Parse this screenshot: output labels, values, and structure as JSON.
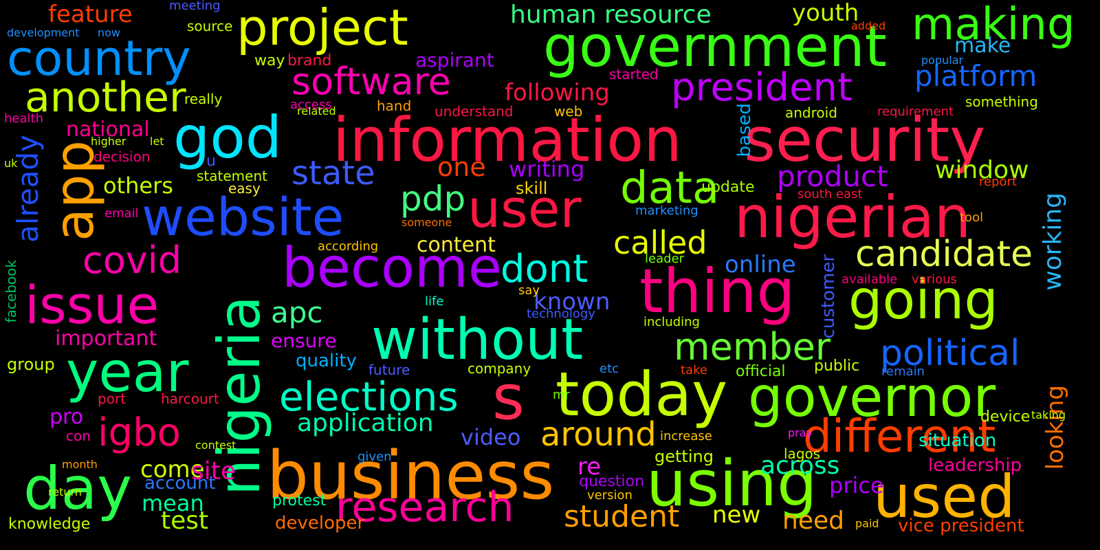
{
  "words": [
    {
      "text": "information",
      "color": "#ff1744"
    },
    {
      "text": "security",
      "color": "#ff1f4f"
    },
    {
      "text": "government",
      "color": "#39ff14"
    },
    {
      "text": "nigerian",
      "color": "#ff1a4a"
    },
    {
      "text": "business",
      "color": "#ff8c00"
    },
    {
      "text": "today",
      "color": "#c6ff00"
    },
    {
      "text": "governor",
      "color": "#76ff03"
    },
    {
      "text": "without",
      "color": "#00ffb3"
    },
    {
      "text": "using",
      "color": "#7cff00"
    },
    {
      "text": "used",
      "color": "#ffb300"
    },
    {
      "text": "thing",
      "color": "#ff0080"
    },
    {
      "text": "going",
      "color": "#aaff00"
    },
    {
      "text": "user",
      "color": "#ff1744"
    },
    {
      "text": "website",
      "color": "#1e4dff"
    },
    {
      "text": "become",
      "color": "#aa00ff"
    },
    {
      "text": "year",
      "color": "#00ff7f"
    },
    {
      "text": "day",
      "color": "#2bff4a"
    },
    {
      "text": "issue",
      "color": "#ff00aa"
    },
    {
      "text": "god",
      "color": "#00e5ff"
    },
    {
      "text": "project",
      "color": "#e8ff00"
    },
    {
      "text": "country",
      "color": "#0091ff"
    },
    {
      "text": "another",
      "color": "#c6ff00"
    },
    {
      "text": "software",
      "color": "#ff00b0"
    },
    {
      "text": "president",
      "color": "#c000ff"
    },
    {
      "text": "making",
      "color": "#39ff14"
    },
    {
      "text": "research",
      "color": "#ff0099"
    },
    {
      "text": "different",
      "color": "#ff3d00"
    },
    {
      "text": "elections",
      "color": "#00ffc8"
    },
    {
      "text": "data",
      "color": "#76ff03"
    },
    {
      "text": "member",
      "color": "#66ff33"
    },
    {
      "text": "political",
      "color": "#1565ff"
    },
    {
      "text": "candidate",
      "color": "#e6ff50"
    },
    {
      "text": "human resource",
      "color": "#39ff88"
    },
    {
      "text": "dont",
      "color": "#00ffe0"
    },
    {
      "text": "platform",
      "color": "#1565ff"
    },
    {
      "text": "product",
      "color": "#b000ff"
    },
    {
      "text": "igbo",
      "color": "#ff0066"
    },
    {
      "text": "covid",
      "color": "#ff00aa"
    },
    {
      "text": "app",
      "color": "#ffa000"
    },
    {
      "text": "nigeria",
      "color": "#00ff8a"
    },
    {
      "text": "already",
      "color": "#1e50ff"
    },
    {
      "text": "state",
      "color": "#3d5aff"
    },
    {
      "text": "around",
      "color": "#ffc400"
    },
    {
      "text": "student",
      "color": "#ffa000"
    },
    {
      "text": "called",
      "color": "#e6ff00"
    },
    {
      "text": "pdp",
      "color": "#40ff80"
    },
    {
      "text": "apc",
      "color": "#3dff90"
    },
    {
      "text": "s",
      "color": "#ff2d55"
    },
    {
      "text": "application",
      "color": "#00ffb0"
    },
    {
      "text": "content",
      "color": "#ffeb3b"
    },
    {
      "text": "window",
      "color": "#aaff00"
    },
    {
      "text": "working",
      "color": "#29b6f6"
    },
    {
      "text": "across",
      "color": "#00ffaa"
    },
    {
      "text": "come",
      "color": "#d0ff00"
    },
    {
      "text": "writing",
      "color": "#aa00ff"
    },
    {
      "text": "one",
      "color": "#ff3d00"
    },
    {
      "text": "others",
      "color": "#c6ff00"
    },
    {
      "text": "important",
      "color": "#ff00aa"
    },
    {
      "text": "national",
      "color": "#ff0090"
    },
    {
      "text": "following",
      "color": "#ff1744"
    },
    {
      "text": "youth",
      "color": "#c6ff00"
    },
    {
      "text": "feature",
      "color": "#ff3d00"
    },
    {
      "text": "video",
      "color": "#4d5cff"
    },
    {
      "text": "known",
      "color": "#4d5cff"
    },
    {
      "text": "online",
      "color": "#2979ff"
    },
    {
      "text": "leadership",
      "color": "#ff00a0"
    },
    {
      "text": "test",
      "color": "#aaff00"
    },
    {
      "text": "ensure",
      "color": "#e000ff"
    },
    {
      "text": "mean",
      "color": "#00ff9c"
    },
    {
      "text": "new",
      "color": "#e8ff00"
    },
    {
      "text": "need",
      "color": "#ffa000"
    },
    {
      "text": "price",
      "color": "#b000ff"
    },
    {
      "text": "quality",
      "color": "#00b0ff"
    },
    {
      "text": "account",
      "color": "#2979ff"
    },
    {
      "text": "make",
      "color": "#29b6f6"
    },
    {
      "text": "situation",
      "color": "#00ffcc"
    },
    {
      "text": "group",
      "color": "#c6ff00"
    },
    {
      "text": "pro",
      "color": "#d000ff"
    },
    {
      "text": "vice president",
      "color": "#ff4000"
    },
    {
      "text": "looking",
      "color": "#ff7000"
    },
    {
      "text": "customer",
      "color": "#3d5aff"
    },
    {
      "text": "based",
      "color": "#00b0ff"
    },
    {
      "text": "facebook",
      "color": "#00c060"
    },
    {
      "text": "knowledge",
      "color": "#c6ff00"
    },
    {
      "text": "developer",
      "color": "#ff6d00"
    },
    {
      "text": "getting",
      "color": "#c6ff00"
    },
    {
      "text": "device",
      "color": "#c6ff00"
    },
    {
      "text": "something",
      "color": "#c6ff00"
    },
    {
      "text": "update",
      "color": "#aaff00"
    },
    {
      "text": "skill",
      "color": "#ffd400"
    },
    {
      "text": "re",
      "color": "#ff1aff"
    },
    {
      "text": "question",
      "color": "#b000ff"
    },
    {
      "text": "protest",
      "color": "#00ff9c"
    },
    {
      "text": "health",
      "color": "#ff00aa"
    },
    {
      "text": "email",
      "color": "#ff00aa"
    },
    {
      "text": "decision",
      "color": "#ff0080"
    },
    {
      "text": "statement",
      "color": "#c6ff00"
    },
    {
      "text": "aspirant",
      "color": "#b000ff"
    },
    {
      "text": "way",
      "color": "#c6ff00"
    },
    {
      "text": "brand",
      "color": "#ff1744"
    },
    {
      "text": "source",
      "color": "#c6ff00"
    },
    {
      "text": "meeting",
      "color": "#4d5cff"
    },
    {
      "text": "available",
      "color": "#ff0080"
    },
    {
      "text": "various",
      "color": "#ff1744"
    },
    {
      "text": "south east",
      "color": "#ff1744"
    },
    {
      "text": "remain",
      "color": "#2979ff"
    },
    {
      "text": "official",
      "color": "#76ff03"
    },
    {
      "text": "public",
      "color": "#c6ff00"
    },
    {
      "text": "company",
      "color": "#c6ff00"
    },
    {
      "text": "future",
      "color": "#4d5cff"
    },
    {
      "text": "port",
      "color": "#ff1744"
    },
    {
      "text": "harcourt",
      "color": "#ff1744"
    },
    {
      "text": "con",
      "color": "#ff00aa"
    },
    {
      "text": "android",
      "color": "#c6ff00"
    },
    {
      "text": "requirement",
      "color": "#ff1744"
    },
    {
      "text": "understand",
      "color": "#ff1744"
    },
    {
      "text": "web",
      "color": "#ffc400"
    },
    {
      "text": "hand",
      "color": "#ffa000"
    },
    {
      "text": "access",
      "color": "#ff00aa"
    },
    {
      "text": "related",
      "color": "#c6ff00"
    },
    {
      "text": "started",
      "color": "#ff00aa"
    },
    {
      "text": "really",
      "color": "#c6ff00"
    },
    {
      "text": "development",
      "color": "#1e90ff"
    },
    {
      "text": "now",
      "color": "#1e90ff"
    },
    {
      "text": "popular",
      "color": "#1e90ff"
    },
    {
      "text": "added",
      "color": "#ff4000"
    },
    {
      "text": "marketing",
      "color": "#1e90ff"
    },
    {
      "text": "someone",
      "color": "#ff6d00"
    },
    {
      "text": "according",
      "color": "#ffc400"
    },
    {
      "text": "leader",
      "color": "#76ff03"
    },
    {
      "text": "including",
      "color": "#c6ff00"
    },
    {
      "text": "life",
      "color": "#00ffcc"
    },
    {
      "text": "say",
      "color": "#ffc400"
    },
    {
      "text": "technology",
      "color": "#3d5aff"
    },
    {
      "text": "etc",
      "color": "#1e90ff"
    },
    {
      "text": "lagos",
      "color": "#c6ff00"
    },
    {
      "text": "increase",
      "color": "#ffc400"
    },
    {
      "text": "month",
      "color": "#ffa000"
    },
    {
      "text": "return",
      "color": "#c6ff00"
    },
    {
      "text": "contest",
      "color": "#c6ff00"
    },
    {
      "text": "site",
      "color": "#ff00aa"
    },
    {
      "text": "easy",
      "color": "#ffeb3b"
    },
    {
      "text": "mr",
      "color": "#76ff03"
    },
    {
      "text": "given",
      "color": "#1e90ff"
    },
    {
      "text": "tool",
      "color": "#ffa000"
    },
    {
      "text": "report",
      "color": "#ff3d00"
    },
    {
      "text": "u",
      "color": "#3d5aff"
    },
    {
      "text": "take",
      "color": "#ff3d00"
    },
    {
      "text": "paid",
      "color": "#ffc400"
    },
    {
      "text": "uk",
      "color": "#c6ff00"
    },
    {
      "text": "pray",
      "color": "#ff1aff"
    },
    {
      "text": "taking",
      "color": "#c6ff00"
    },
    {
      "text": "version",
      "color": "#ffc400"
    },
    {
      "text": "higher",
      "color": "#c6ff00"
    },
    {
      "text": "let",
      "color": "#c6ff00"
    }
  ]
}
